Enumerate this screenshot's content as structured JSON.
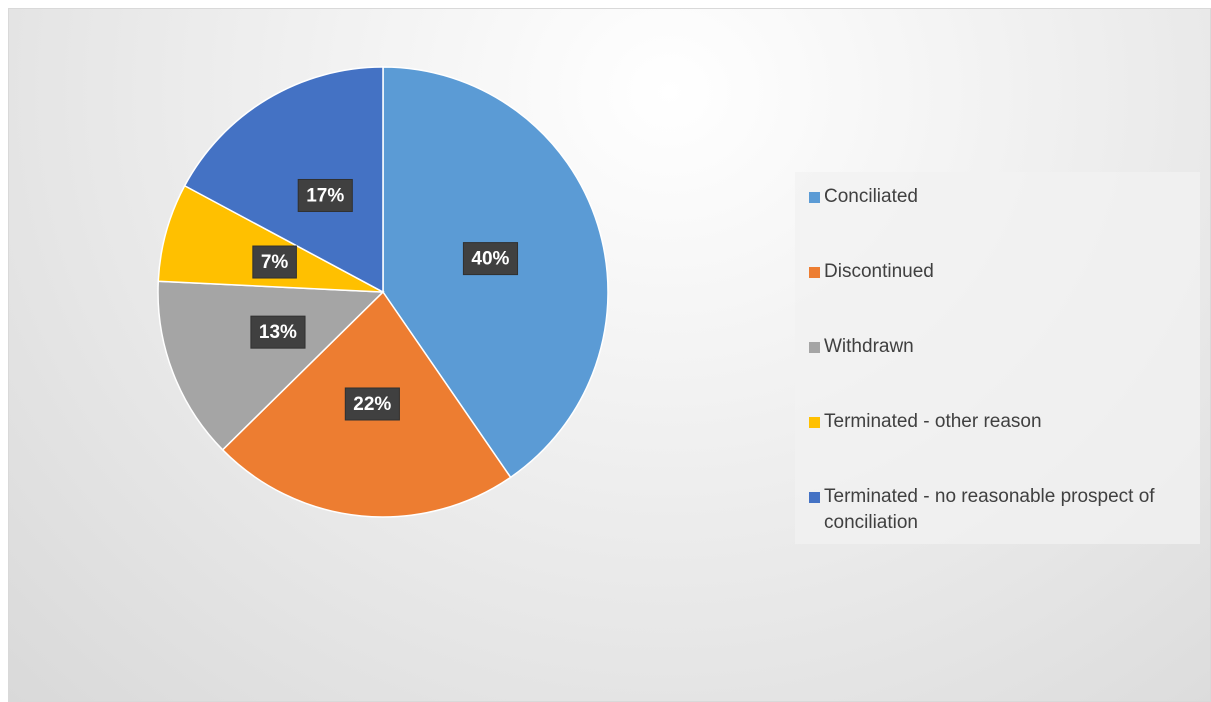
{
  "chart_data": {
    "type": "pie",
    "categories": [
      "Conciliated",
      "Discontinued",
      "Withdrawn",
      "Terminated - other reason",
      "Terminated - no reasonable prospect of conciliation"
    ],
    "values": [
      40,
      22,
      13,
      7,
      17
    ],
    "value_labels": [
      "40%",
      "22%",
      "13%",
      "7%",
      "17%"
    ],
    "colors": [
      "#5b9bd5",
      "#ed7d31",
      "#a5a5a5",
      "#ffc000",
      "#4472c4"
    ],
    "legend": "right"
  }
}
